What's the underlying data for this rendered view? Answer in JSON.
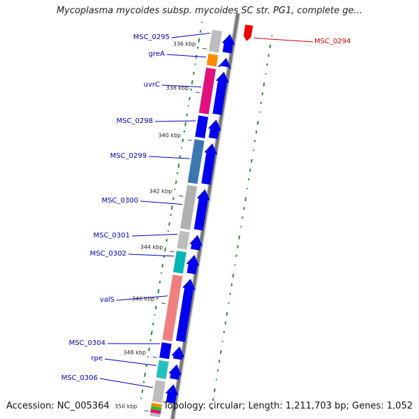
{
  "title": "Mycoplasma mycoides subsp. mycoides SC str. PG1, complete ge...",
  "accession": "Accession: NC_005364",
  "summary": "Topology: circular; Length: 1,211,703 bp; Genes: 1,052",
  "colors": {
    "backbone": "#7a7a7a",
    "forward_arrow": "#0000ee",
    "reverse_arrow": "#ee0000",
    "label_left": "#0000bb",
    "label_right": "#cc0000",
    "gc_tick": "#2e8b2e"
  },
  "ticks": [
    {
      "label": "336 kbp"
    },
    {
      "label": "338 kbp"
    },
    {
      "label": "340 kbp"
    },
    {
      "label": "342 kbp"
    },
    {
      "label": "344 kbp"
    },
    {
      "label": "346 kbp"
    },
    {
      "label": "348 kbp"
    },
    {
      "label": "350 kbp"
    }
  ],
  "genes": [
    {
      "name": "MSC_0295",
      "color": "#bdbdbd"
    },
    {
      "name": "greA",
      "color": "#ff8c00"
    },
    {
      "name": "uvrC",
      "color": "#e0107f"
    },
    {
      "name": "MSC_0298",
      "color": "#0000ee"
    },
    {
      "name": "MSC_0299",
      "color": "#3a78b0"
    },
    {
      "name": "MSC_0300",
      "color": "#b0b0b0"
    },
    {
      "name": "MSC_0301",
      "color": "#bdbdbd"
    },
    {
      "name": "MSC_0302",
      "color": "#00b5b5"
    },
    {
      "name": "valS",
      "color": "#f08080"
    },
    {
      "name": "MSC_0304",
      "color": "#0000ee"
    },
    {
      "name": "rpe",
      "color": "#20c0c0"
    },
    {
      "name": "MSC_0306",
      "color": "#bdbdbd"
    }
  ],
  "right_genes": [
    {
      "name": "MSC_0294",
      "color": "#ee0000"
    }
  ]
}
